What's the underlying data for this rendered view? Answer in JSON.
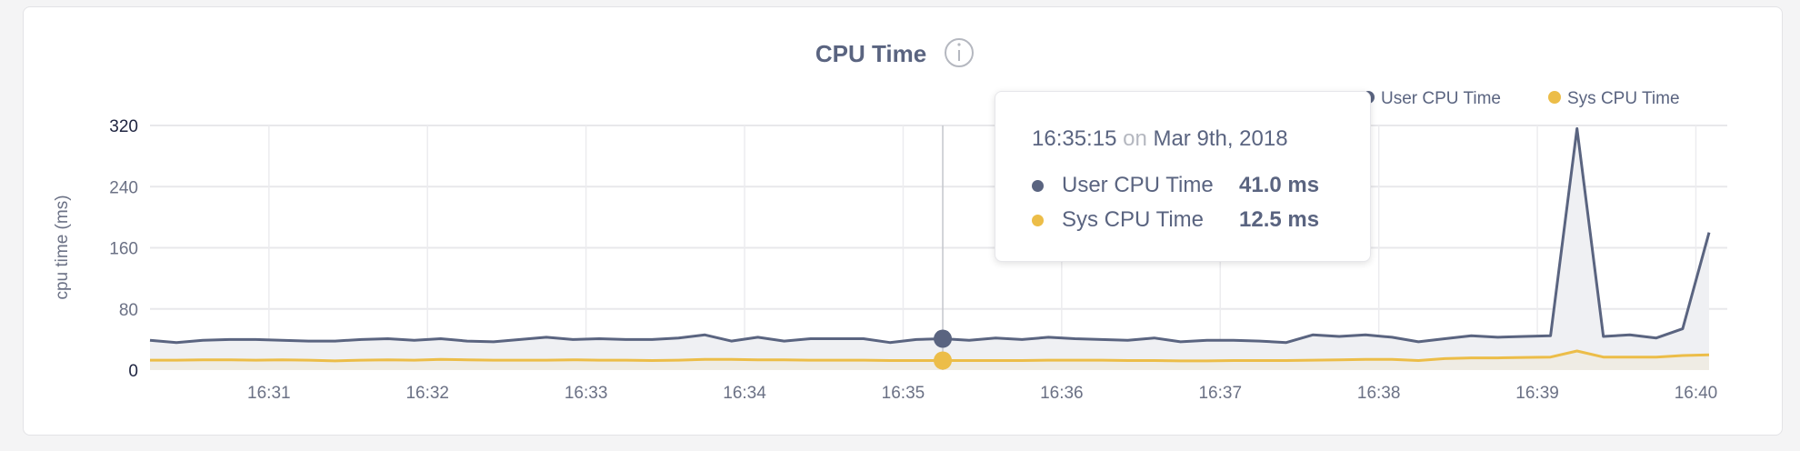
{
  "chart_data": {
    "type": "line",
    "title": "CPU Time",
    "title_icon": "info-icon",
    "ylabel": "cpu time (ms)",
    "xlabel": "",
    "ylim": [
      0,
      320
    ],
    "yticks": [
      0,
      80,
      160,
      240,
      320
    ],
    "xticks": [
      "16:31",
      "16:32",
      "16:33",
      "16:34",
      "16:35",
      "16:36",
      "16:37",
      "16:38",
      "16:39",
      "16:40"
    ],
    "x_start": "16:30:15",
    "x_step_seconds": 10,
    "grid": true,
    "legend_placement": "top-right",
    "series": [
      {
        "name": "User CPU Time",
        "color": "#5a6480",
        "values": [
          39,
          36,
          39,
          40,
          40,
          39,
          38,
          38,
          40,
          41,
          39,
          41,
          38,
          37,
          40,
          43,
          40,
          41,
          40,
          40,
          42,
          46,
          38,
          43,
          38,
          41,
          41,
          41,
          36,
          40,
          41,
          39,
          42,
          40,
          43,
          41,
          40,
          39,
          42,
          37,
          39,
          39,
          38,
          36,
          46,
          44,
          46,
          43,
          37,
          41,
          45,
          43,
          44,
          45,
          316,
          44,
          46,
          42,
          54,
          180
        ]
      },
      {
        "name": "Sys CPU Time",
        "color": "#ecbd48",
        "values": [
          13,
          13,
          13.5,
          13.5,
          13,
          13.5,
          13,
          12,
          13,
          13.5,
          13,
          14,
          13.5,
          13,
          13,
          13,
          13.5,
          13,
          13,
          12.5,
          13,
          14,
          14,
          13.5,
          13.5,
          13,
          13,
          13,
          12.5,
          12.5,
          12.5,
          12.5,
          12.5,
          12.5,
          13,
          13,
          13,
          12.5,
          12.5,
          12,
          12,
          12.5,
          12.5,
          12.5,
          13,
          13.5,
          14,
          14,
          12.5,
          15,
          16,
          16,
          16.5,
          17,
          25,
          17,
          17,
          17,
          19,
          20
        ]
      }
    ],
    "tooltip": {
      "time": "16:35:15",
      "on": "on",
      "date": "Mar 9th, 2018",
      "index": 30,
      "rows": [
        {
          "name": "User CPU Time",
          "value": "41.0 ms",
          "color": "#5a6480"
        },
        {
          "name": "Sys CPU Time",
          "value": "12.5 ms",
          "color": "#ecbd48"
        }
      ]
    }
  }
}
